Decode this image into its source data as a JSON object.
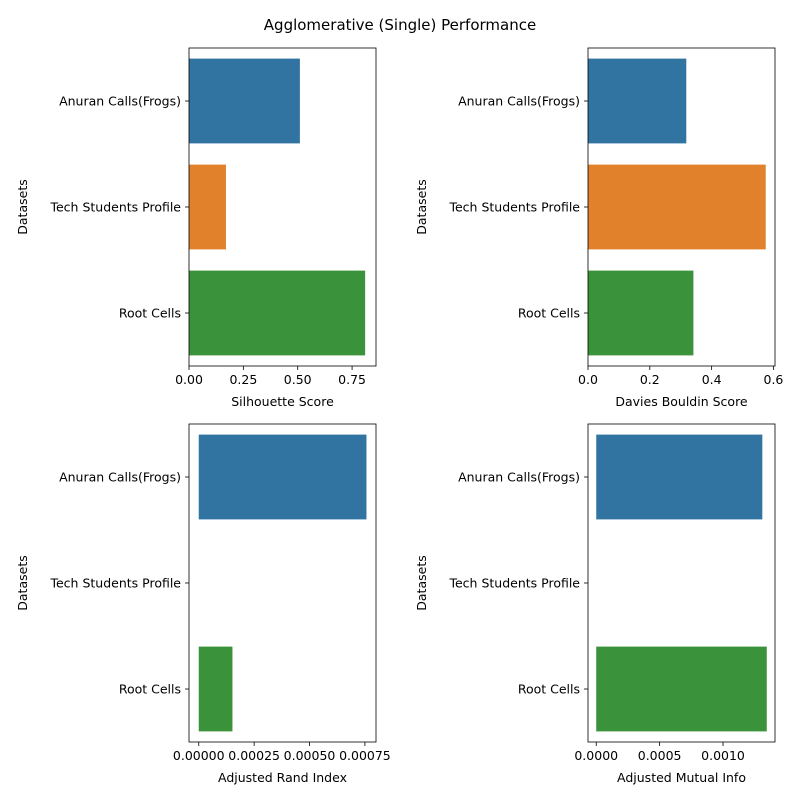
{
  "figure": {
    "title": "Agglomerative (Single) Performance"
  },
  "chart_data": [
    {
      "type": "bar",
      "orientation": "horizontal",
      "xlabel": "Silhouette Score",
      "ylabel": "Datasets",
      "categories": [
        "Anuran Calls(Frogs)",
        "Tech Students Profile",
        "Root Cells"
      ],
      "values": [
        0.51,
        0.17,
        0.81
      ],
      "xlim": [
        0,
        0.86
      ],
      "xticks": [
        0,
        0.25,
        0.5,
        0.75
      ],
      "xtick_labels": [
        "0.00",
        "0.25",
        "0.50",
        "0.75"
      ],
      "colors": [
        "#3274a1",
        "#e1812c",
        "#3a923a"
      ]
    },
    {
      "type": "bar",
      "orientation": "horizontal",
      "xlabel": "Davies Bouldin Score",
      "ylabel": "Datasets",
      "categories": [
        "Anuran Calls(Frogs)",
        "Tech Students Profile",
        "Root Cells"
      ],
      "values": [
        0.318,
        0.575,
        0.341
      ],
      "xlim": [
        0,
        0.605
      ],
      "xticks": [
        0,
        0.2,
        0.4,
        0.6
      ],
      "xtick_labels": [
        "0.0",
        "0.2",
        "0.4",
        "0.6"
      ],
      "colors": [
        "#3274a1",
        "#e1812c",
        "#3a923a"
      ]
    },
    {
      "type": "bar",
      "orientation": "horizontal",
      "xlabel": "Adjusted Rand Index",
      "ylabel": "Datasets",
      "categories": [
        "Anuran Calls(Frogs)",
        "Tech Students Profile",
        "Root Cells"
      ],
      "values": [
        0.000757,
        0.0,
        0.000152
      ],
      "xlim": [
        -4.4e-05,
        0.0008
      ],
      "xticks": [
        0,
        0.00025,
        0.0005,
        0.00075
      ],
      "xtick_labels": [
        "0.00000",
        "0.00025",
        "0.00050",
        "0.00075"
      ],
      "colors": [
        "#3274a1",
        "#e1812c",
        "#3a923a"
      ]
    },
    {
      "type": "bar",
      "orientation": "horizontal",
      "xlabel": "Adjusted Mutual Info",
      "ylabel": "Datasets",
      "categories": [
        "Anuran Calls(Frogs)",
        "Tech Students Profile",
        "Root Cells"
      ],
      "values": [
        0.00131,
        0.0,
        0.001345
      ],
      "xlim": [
        -6.5e-05,
        0.00141
      ],
      "xticks": [
        0,
        0.0005,
        0.001
      ],
      "xtick_labels": [
        "0.0000",
        "0.0005",
        "0.0010"
      ],
      "colors": [
        "#3274a1",
        "#e1812c",
        "#3a923a"
      ]
    }
  ]
}
